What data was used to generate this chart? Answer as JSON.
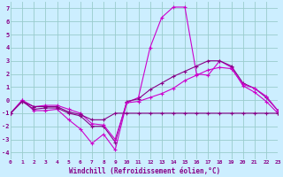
{
  "xlabel": "Windchill (Refroidissement éolien,°C)",
  "background_color": "#cceeff",
  "grid_color": "#99cccc",
  "line_color1": "#cc00cc",
  "line_color2": "#880088",
  "xlim": [
    0,
    23
  ],
  "ylim": [
    -4.5,
    7.5
  ],
  "xticks": [
    0,
    1,
    2,
    3,
    4,
    5,
    6,
    7,
    8,
    9,
    10,
    11,
    12,
    13,
    14,
    15,
    16,
    17,
    18,
    19,
    20,
    21,
    22,
    23
  ],
  "yticks": [
    -4,
    -3,
    -2,
    -1,
    0,
    1,
    2,
    3,
    4,
    5,
    6,
    7
  ],
  "curve1_x": [
    0,
    1,
    2,
    3,
    4,
    5,
    6,
    7,
    8,
    9,
    10,
    11,
    12,
    13,
    14,
    15,
    16,
    17,
    18,
    19,
    20,
    21,
    22,
    23
  ],
  "curve1_y": [
    -1.0,
    0.0,
    -0.8,
    -0.8,
    -0.7,
    -1.5,
    -2.2,
    -3.3,
    -2.6,
    -3.8,
    -0.2,
    0.2,
    4.0,
    6.3,
    7.1,
    7.1,
    2.0,
    1.9,
    3.0,
    2.5,
    1.1,
    0.6,
    -0.1,
    -1.0
  ],
  "curve2_x": [
    0,
    1,
    2,
    3,
    4,
    5,
    6,
    7,
    8,
    9,
    10,
    11,
    12,
    13,
    14,
    15,
    16,
    17,
    18,
    19,
    20,
    21,
    22,
    23
  ],
  "curve2_y": [
    -1.0,
    -0.1,
    -0.7,
    -0.6,
    -0.6,
    -1.0,
    -1.2,
    -2.0,
    -2.0,
    -3.2,
    -0.1,
    0.1,
    0.8,
    1.3,
    1.8,
    2.2,
    2.6,
    3.0,
    3.0,
    2.6,
    1.3,
    0.9,
    0.2,
    -0.8
  ],
  "curve3_x": [
    0,
    1,
    2,
    3,
    4,
    5,
    6,
    7,
    8,
    9,
    10,
    11,
    12,
    13,
    14,
    15,
    16,
    17,
    18,
    19,
    20,
    21,
    22,
    23
  ],
  "curve3_y": [
    -1.0,
    0.0,
    -0.5,
    -0.4,
    -0.4,
    -0.7,
    -1.0,
    -1.8,
    -1.9,
    -3.0,
    -0.2,
    -0.1,
    0.2,
    0.5,
    0.9,
    1.5,
    1.9,
    2.3,
    2.5,
    2.4,
    1.2,
    0.9,
    0.3,
    -0.8
  ],
  "curve4_x": [
    0,
    1,
    2,
    3,
    4,
    5,
    6,
    7,
    8,
    9,
    10,
    11,
    12,
    13,
    14,
    15,
    16,
    17,
    18,
    19,
    20,
    21,
    22,
    23
  ],
  "curve4_y": [
    -1.0,
    -0.1,
    -0.5,
    -0.5,
    -0.5,
    -0.9,
    -1.1,
    -1.5,
    -1.5,
    -1.0,
    -1.0,
    -1.0,
    -1.0,
    -1.0,
    -1.0,
    -1.0,
    -1.0,
    -1.0,
    -1.0,
    -1.0,
    -1.0,
    -1.0,
    -1.0,
    -1.0
  ]
}
